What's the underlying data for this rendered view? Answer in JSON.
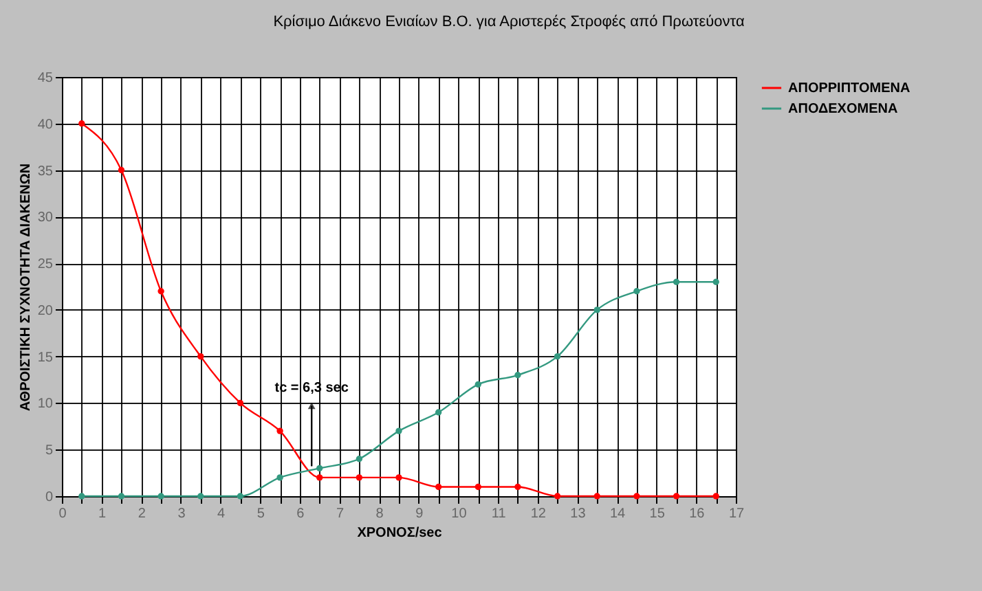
{
  "chart_data": {
    "type": "line",
    "title": "Κρίσιμο Διάκενο Ενιαίων Β.Ο. για Αριστερές Στροφές από Πρωτεύοντα",
    "xlabel": "ΧΡΟΝΟΣ/sec",
    "ylabel": "ΑΘΡΟΙΣΤΙΚΗ ΣΥΧΝΟΤΗΤΑ ΔΙΑΚΕΝΩΝ",
    "x": [
      0.5,
      1.5,
      2.5,
      3.5,
      4.5,
      5.5,
      6.5,
      7.5,
      8.5,
      9.5,
      10.5,
      11.5,
      12.5,
      13.5,
      14.5,
      15.5,
      16.5
    ],
    "series": [
      {
        "name": "ΑΠΟΡΡΙΠΤΟΜΕΝΑ",
        "color": "#ff0000",
        "values": [
          40,
          35,
          22,
          15,
          10,
          7,
          2,
          2,
          2,
          1,
          1,
          1,
          0,
          0,
          0,
          0,
          0
        ]
      },
      {
        "name": "ΑΠΟΔΕΧΟΜΕΝΑ",
        "color": "#339980",
        "values": [
          0,
          0,
          0,
          0,
          0,
          2,
          3,
          4,
          7,
          9,
          12,
          13,
          15,
          20,
          22,
          23,
          23
        ]
      }
    ],
    "xlim": [
      0,
      17
    ],
    "xticks": [
      0,
      {
        "value": 0.5,
        "label": null
      },
      1,
      {
        "value": 1.5,
        "label": null
      },
      2,
      {
        "value": 2.5,
        "label": null
      },
      3,
      {
        "value": 3.5,
        "label": null
      },
      4,
      {
        "value": 4.5,
        "label": null
      },
      5,
      {
        "value": 5.5,
        "label": null
      },
      6,
      {
        "value": 6.5,
        "label": null
      },
      7,
      {
        "value": 7.5,
        "label": null
      },
      8,
      {
        "value": 8.5,
        "label": null
      },
      9,
      {
        "value": 9.5,
        "label": null
      },
      10,
      {
        "value": 10.5,
        "label": null
      },
      11,
      {
        "value": 11.5,
        "label": null
      },
      12,
      {
        "value": 12.5,
        "label": null
      },
      13,
      {
        "value": 13.5,
        "label": null
      },
      14,
      {
        "value": 14.5,
        "label": null
      },
      15,
      {
        "value": 15.5,
        "label": null
      },
      16,
      {
        "value": 16.5,
        "label": null
      },
      17
    ],
    "ylim": [
      0,
      45
    ],
    "yticks": [
      0,
      5,
      10,
      15,
      20,
      25,
      30,
      35,
      40,
      45
    ],
    "grid": true,
    "legend": "right",
    "marker": "circle",
    "annotations": [
      {
        "text": "tc = 6,3 sec",
        "x": 6.3,
        "y": 10
      }
    ]
  }
}
